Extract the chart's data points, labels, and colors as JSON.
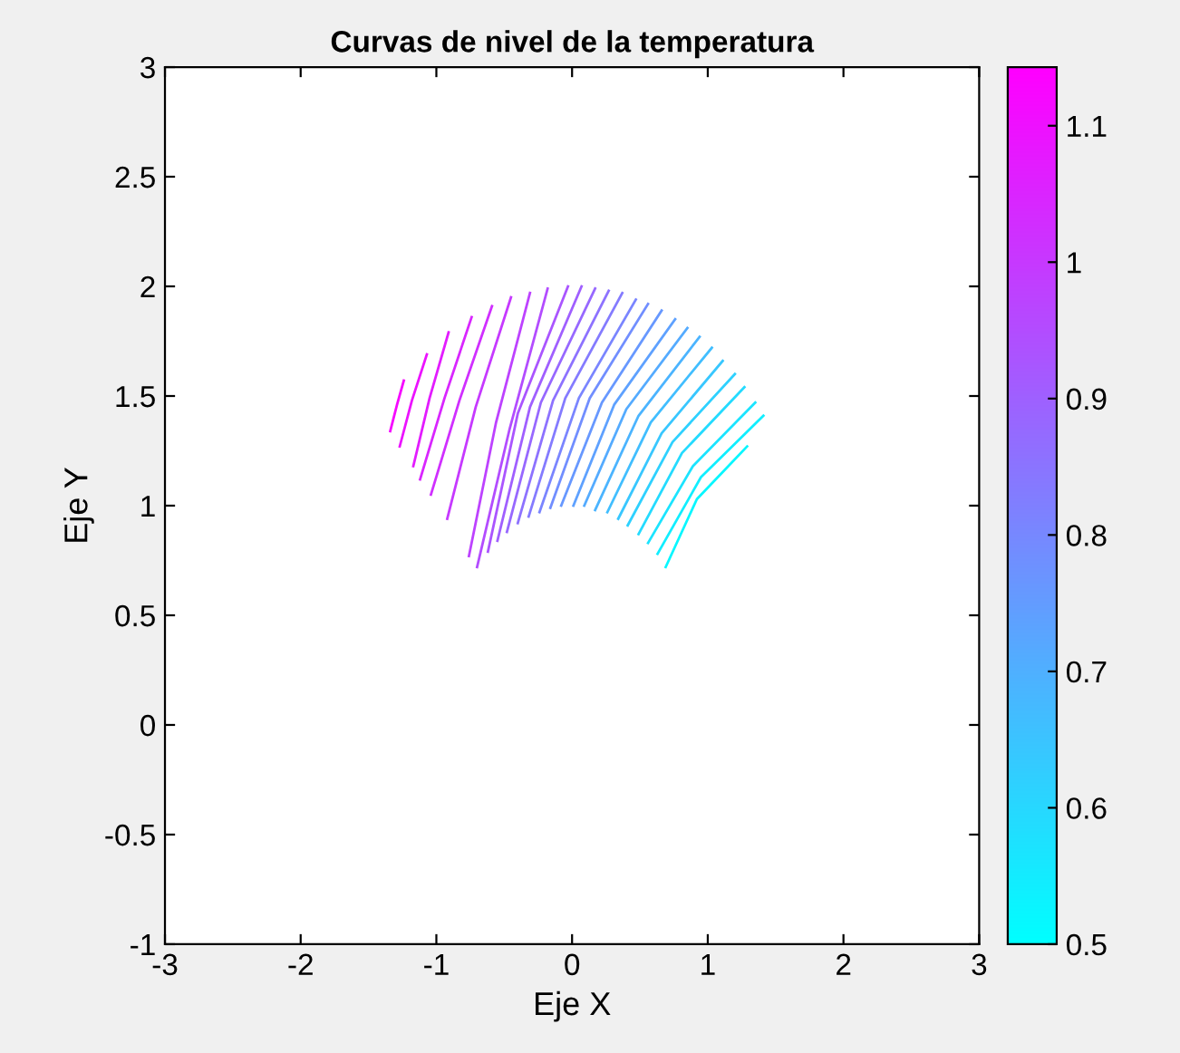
{
  "chart_data": {
    "type": "line",
    "title": "Curvas de nivel de la temperatura",
    "xlabel": "Eje X",
    "ylabel": "Eje Y",
    "xlim": [
      -3,
      3
    ],
    "xticks": [
      -3,
      -2,
      -1,
      0,
      1,
      2,
      3
    ],
    "ylim": [
      -1,
      3
    ],
    "yticks": [
      -1,
      -0.5,
      0,
      0.5,
      1,
      1.5,
      2,
      2.5,
      3
    ],
    "clim": [
      0.5,
      1.143
    ],
    "cticks": [
      0.5,
      0.6,
      0.7,
      0.8,
      0.9,
      1,
      1.1
    ],
    "grid": false,
    "legend": false,
    "marker": "none",
    "line_style": "solid",
    "series": [
      {
        "color": "#f609ff",
        "x": [
          -1.24,
          -1.29,
          -1.34
        ],
        "values": [
          1.57,
          1.46,
          1.34
        ]
      },
      {
        "color": "#ec13ff",
        "x": [
          -1.07,
          -1.18,
          -1.27
        ],
        "values": [
          1.69,
          1.48,
          1.27
        ]
      },
      {
        "color": "#e31cff",
        "x": [
          -0.91,
          -1.05,
          -1.17
        ],
        "values": [
          1.79,
          1.49,
          1.18
        ]
      },
      {
        "color": "#d926ff",
        "x": [
          -0.74,
          -0.94,
          -1.12
        ],
        "values": [
          1.86,
          1.49,
          1.12
        ]
      },
      {
        "color": "#d02fff",
        "x": [
          -0.59,
          -0.83,
          -1.04
        ],
        "values": [
          1.91,
          1.48,
          1.05
        ]
      },
      {
        "color": "#c639ff",
        "x": [
          -0.45,
          -0.71,
          -0.92
        ],
        "values": [
          1.95,
          1.45,
          0.94
        ]
      },
      {
        "color": "#bd42ff",
        "x": [
          -0.31,
          -0.56,
          -0.76
        ],
        "values": [
          1.97,
          1.38,
          0.77
        ]
      },
      {
        "color": "#b34cff",
        "x": [
          -0.18,
          -0.46,
          -0.7
        ],
        "values": [
          1.99,
          1.35,
          0.72
        ]
      },
      {
        "color": "#aa55ff",
        "x": [
          -0.03,
          -0.4,
          -0.62
        ],
        "values": [
          2.0,
          1.42,
          0.79
        ]
      },
      {
        "color": "#a05fff",
        "x": [
          0.07,
          -0.31,
          -0.55
        ],
        "values": [
          2.0,
          1.45,
          0.84
        ]
      },
      {
        "color": "#9768ff",
        "x": [
          0.17,
          -0.23,
          -0.48
        ],
        "values": [
          1.99,
          1.47,
          0.88
        ]
      },
      {
        "color": "#8d72ff",
        "x": [
          0.27,
          -0.14,
          -0.4
        ],
        "values": [
          1.98,
          1.48,
          0.92
        ]
      },
      {
        "color": "#847bff",
        "x": [
          0.37,
          -0.05,
          -0.32
        ],
        "values": [
          1.97,
          1.49,
          0.95
        ]
      },
      {
        "color": "#7a85ff",
        "x": [
          0.47,
          0.05,
          -0.24
        ],
        "values": [
          1.94,
          1.49,
          0.97
        ]
      },
      {
        "color": "#718eff",
        "x": [
          0.56,
          0.13,
          -0.16
        ],
        "values": [
          1.92,
          1.49,
          0.99
        ]
      },
      {
        "color": "#6798ff",
        "x": [
          0.66,
          0.22,
          -0.08
        ],
        "values": [
          1.89,
          1.47,
          1.0
        ]
      },
      {
        "color": "#5ea1ff",
        "x": [
          0.76,
          0.31,
          0.01
        ],
        "values": [
          1.85,
          1.46,
          1.0
        ]
      },
      {
        "color": "#54abff",
        "x": [
          0.85,
          0.4,
          0.09
        ],
        "values": [
          1.81,
          1.44,
          1.0
        ]
      },
      {
        "color": "#4bb4ff",
        "x": [
          0.94,
          0.49,
          0.17
        ],
        "values": [
          1.77,
          1.41,
          0.98
        ]
      },
      {
        "color": "#41beff",
        "x": [
          1.03,
          0.58,
          0.26
        ],
        "values": [
          1.72,
          1.38,
          0.97
        ]
      },
      {
        "color": "#38c7ff",
        "x": [
          1.11,
          0.66,
          0.34
        ],
        "values": [
          1.66,
          1.33,
          0.94
        ]
      },
      {
        "color": "#2ed1ff",
        "x": [
          1.2,
          0.74,
          0.41
        ],
        "values": [
          1.6,
          1.29,
          0.91
        ]
      },
      {
        "color": "#24dbff",
        "x": [
          1.27,
          0.81,
          0.49
        ],
        "values": [
          1.54,
          1.24,
          0.87
        ]
      },
      {
        "color": "#1be4ff",
        "x": [
          1.35,
          0.89,
          0.56
        ],
        "values": [
          1.47,
          1.18,
          0.83
        ]
      },
      {
        "color": "#11eeff",
        "x": [
          1.41,
          0.95,
          0.63
        ],
        "values": [
          1.41,
          1.13,
          0.78
        ]
      },
      {
        "color": "#08f7ff",
        "x": [
          1.29,
          0.92,
          0.69
        ],
        "values": [
          1.27,
          1.03,
          0.72
        ]
      }
    ]
  }
}
